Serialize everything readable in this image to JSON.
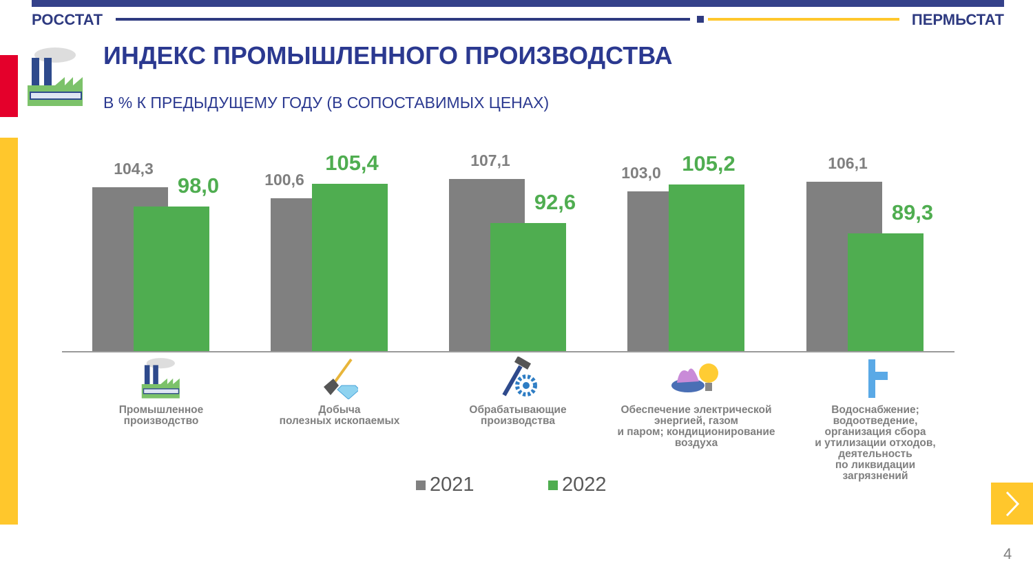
{
  "header": {
    "left": "РОССТАТ",
    "right": "ПЕРМЬСТАТ"
  },
  "title": "ИНДЕКС ПРОМЫШЛЕННОГО ПРОИЗВОДСТВА",
  "subtitle": "В % К ПРЕДЫДУЩЕМУ ГОДУ (В СОПОСТАВИМЫХ ЦЕНАХ)",
  "page_number": "4",
  "colors": {
    "2021": "#808080",
    "2022": "#4fad50",
    "brand": "#2b3990",
    "accent": "#ffc72c"
  },
  "chart_data": {
    "type": "bar",
    "title": "ИНДЕКС ПРОМЫШЛЕННОГО ПРОИЗВОДСТВА",
    "ylabel": "В % К ПРЕДЫДУЩЕМУ ГОДУ",
    "ylim": [
      50.7,
      112
    ],
    "categories": [
      "Промышленное\nпроизводство",
      "Добыча\nполезных ископаемых",
      "Обрабатывающие\nпроизводства",
      "Обеспечение электрической\nэнергией, газом\nи паром; кондиционирование\nвоздуха",
      "Водоснабжение;\nводоотведение,\nорганизация сбора\nи утилизации отходов,\nдеятельность\nпо ликвидации\nзагрязнений"
    ],
    "icons": [
      "factory-icon",
      "shovel-diamond-icon",
      "hammer-gear-icon",
      "gas-burner-bulb-icon",
      "water-pipe-icon"
    ],
    "series": [
      {
        "name": "2021",
        "values": [
          104.3,
          100.6,
          107.1,
          103.0,
          106.1
        ],
        "labels": [
          "104,3",
          "100,6",
          "107,1",
          "103,0",
          "106,1"
        ]
      },
      {
        "name": "2022",
        "values": [
          98.0,
          105.4,
          92.6,
          105.2,
          89.3
        ],
        "labels": [
          "98,0",
          "105,4",
          "92,6",
          "105,2",
          "89,3"
        ]
      }
    ],
    "legend": "bottom"
  }
}
